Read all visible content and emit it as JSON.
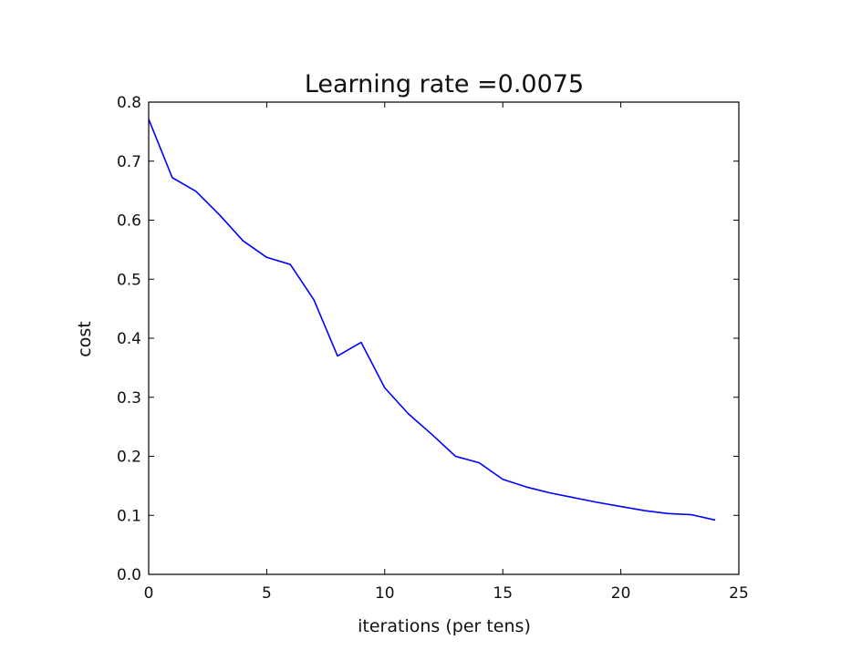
{
  "chart_data": {
    "type": "line",
    "title": "Learning rate =0.0075",
    "xlabel": "iterations (per tens)",
    "ylabel": "cost",
    "xlim": [
      0,
      25
    ],
    "ylim": [
      0.0,
      0.8
    ],
    "x_ticks": [
      "0",
      "5",
      "10",
      "15",
      "20",
      "25"
    ],
    "y_ticks": [
      "0.0",
      "0.1",
      "0.2",
      "0.3",
      "0.4",
      "0.5",
      "0.6",
      "0.7",
      "0.8"
    ],
    "grid": false,
    "legend": "none",
    "series": [
      {
        "color": "#0000ff",
        "x": [
          0,
          1,
          2,
          3,
          4,
          5,
          6,
          7,
          8,
          9,
          10,
          11,
          12,
          13,
          14,
          15,
          16,
          17,
          18,
          19,
          20,
          21,
          22,
          23,
          24
        ],
        "y": [
          0.771,
          0.672,
          0.649,
          0.609,
          0.565,
          0.537,
          0.525,
          0.465,
          0.37,
          0.393,
          0.316,
          0.272,
          0.237,
          0.2,
          0.189,
          0.161,
          0.148,
          0.138,
          0.13,
          0.122,
          0.115,
          0.108,
          0.103,
          0.101,
          0.092
        ]
      }
    ]
  }
}
